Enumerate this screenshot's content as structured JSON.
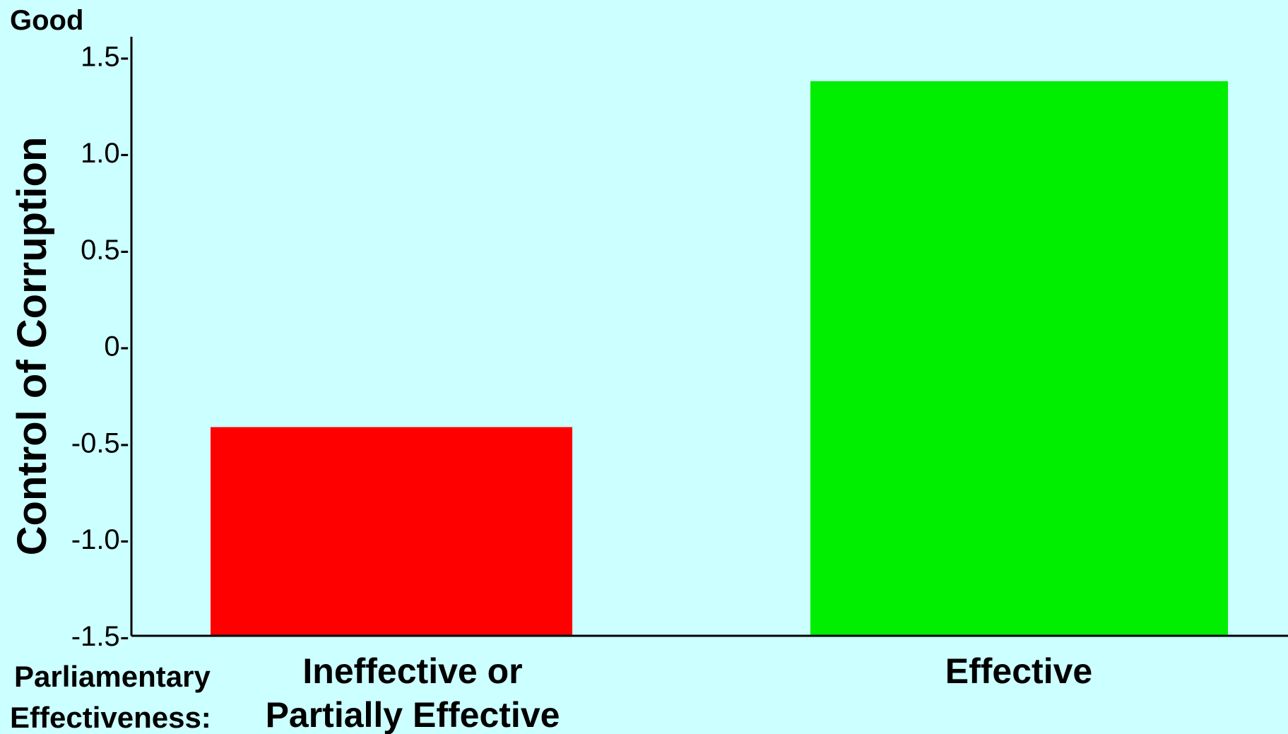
{
  "chart_data": {
    "type": "bar",
    "top_note": "Good",
    "ylabel": "Control of Corruption",
    "xlabel_prefix": [
      "Parliamentary",
      "Effectiveness:"
    ],
    "categories": [
      [
        "Ineffective or",
        "Partially Effective"
      ],
      [
        "Effective"
      ]
    ],
    "values": [
      -0.42,
      1.37
    ],
    "bar_colors": [
      "#ff0000",
      "#00ee00"
    ],
    "ylim": [
      -1.5,
      1.6
    ],
    "yticks": [
      1.5,
      1.0,
      0.5,
      0,
      -0.5,
      -1.0,
      -1.5
    ],
    "ytick_labels": [
      "1.5-",
      "1.0-",
      "0.5-",
      "0-",
      "-0.5-",
      "-1.0-",
      "-1.5-"
    ],
    "grid": false
  }
}
